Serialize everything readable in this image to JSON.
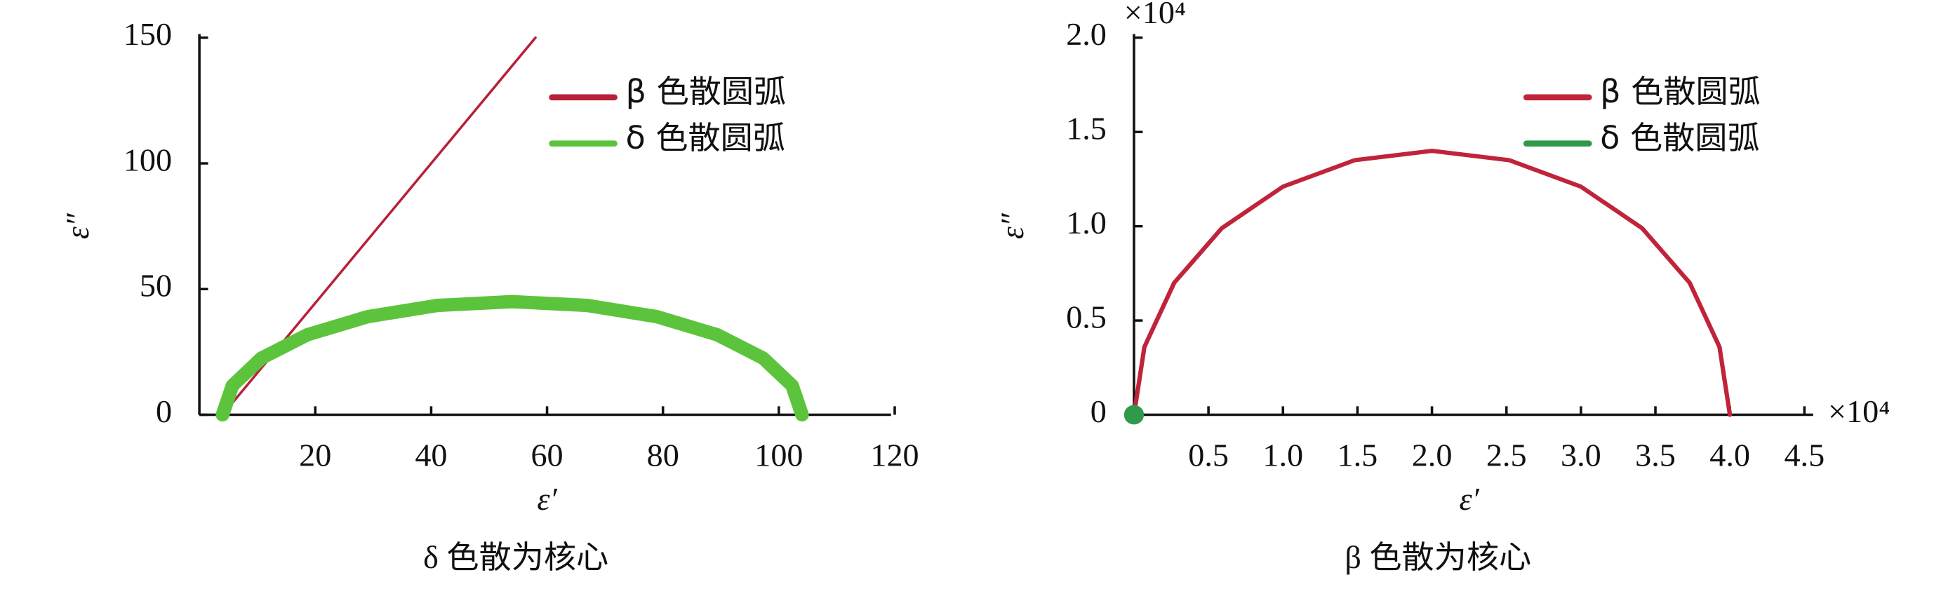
{
  "chart_data": [
    {
      "type": "line",
      "caption": "δ 色散为核心",
      "xlabel": "ε′",
      "ylabel": "ε″",
      "xlim": [
        0,
        120
      ],
      "xticks": [
        20,
        40,
        60,
        80,
        100,
        120
      ],
      "ylim": [
        0,
        150
      ],
      "yticks": [
        0,
        50,
        100,
        150
      ],
      "series": [
        {
          "name": "β 色散圆弧",
          "color": "#b8203a",
          "line_width": 2,
          "x": [
            4,
            58
          ],
          "values": [
            0,
            150
          ]
        },
        {
          "name": "δ 色散圆弧",
          "color": "#5cc43c",
          "line_width": 11,
          "x": [
            4,
            5.7,
            10.7,
            18.6,
            29,
            41.1,
            54,
            66.9,
            79,
            89.4,
            97.3,
            102.3,
            104
          ],
          "values": [
            0,
            11.6,
            22.5,
            31.8,
            39,
            43.5,
            45,
            43.5,
            39,
            31.8,
            22.5,
            11.6,
            0
          ]
        }
      ]
    },
    {
      "type": "line",
      "caption": "β 色散为核心",
      "xlabel": "ε′",
      "ylabel": "ε″",
      "x_multiplier": "×10⁴",
      "y_multiplier": "×10⁴",
      "xlim": [
        0,
        4.5
      ],
      "xticks": [
        0.5,
        {
          "value": 1,
          "label": "1.0"
        },
        1.5,
        {
          "value": 2,
          "label": "2.0"
        },
        2.5,
        {
          "value": 3,
          "label": "3.0"
        },
        3.5,
        {
          "value": 4,
          "label": "4.0"
        },
        4.5
      ],
      "ylim": [
        0,
        2
      ],
      "yticks": [
        0,
        0.5,
        {
          "value": 1,
          "label": "1.0"
        },
        1.5,
        {
          "value": 2,
          "label": "2.0"
        }
      ],
      "series": [
        {
          "name": "β 色散圆弧",
          "color": "#c0243a",
          "line_width": 3.5,
          "x": [
            0,
            0.07,
            0.27,
            0.59,
            1,
            1.48,
            2,
            2.52,
            3,
            3.41,
            3.73,
            3.93,
            4
          ],
          "values": [
            0,
            0.36,
            0.7,
            0.99,
            1.21,
            1.35,
            1.4,
            1.35,
            1.21,
            0.99,
            0.7,
            0.36,
            0
          ]
        },
        {
          "name": "δ 色散圆弧",
          "color": "#2f9a4a",
          "line_width": 3.5,
          "x": [
            0
          ],
          "values": [
            0
          ]
        }
      ]
    }
  ]
}
